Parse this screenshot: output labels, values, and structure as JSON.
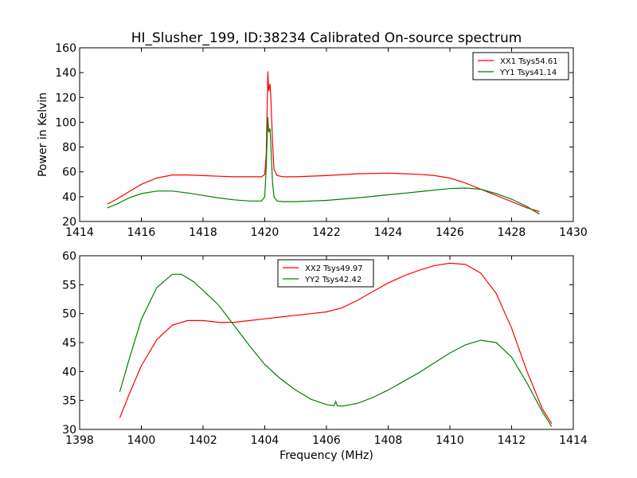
{
  "figure": {
    "title": "HI_Slusher_199, ID:38234 Calibrated On-source spectrum"
  },
  "chart_data": [
    {
      "type": "line",
      "title": "HI_Slusher_199, ID:38234 Calibrated On-source spectrum",
      "xlabel": "",
      "ylabel": "Power in Kelvin",
      "xlim": [
        1414,
        1430
      ],
      "ylim": [
        20,
        160
      ],
      "xticks": [
        1414,
        1416,
        1418,
        1420,
        1422,
        1424,
        1426,
        1428,
        1430
      ],
      "yticks": [
        20,
        40,
        60,
        80,
        100,
        120,
        140,
        160
      ],
      "legend_position": "top-right",
      "grid": false,
      "series": [
        {
          "name": "XX1 Tsys54.61",
          "color": "#ff0000",
          "x": [
            1414.9,
            1415.2,
            1415.6,
            1416.0,
            1416.5,
            1417.0,
            1417.5,
            1418.0,
            1418.5,
            1419.0,
            1419.5,
            1419.9,
            1420.0,
            1420.05,
            1420.1,
            1420.13,
            1420.17,
            1420.2,
            1420.25,
            1420.3,
            1420.4,
            1420.6,
            1421.0,
            1422.0,
            1423.0,
            1424.0,
            1425.0,
            1425.5,
            1426.0,
            1426.5,
            1427.0,
            1427.5,
            1428.0,
            1428.5,
            1428.9
          ],
          "y": [
            34,
            38,
            44,
            50,
            55,
            57.5,
            57.5,
            57,
            56.5,
            56,
            56,
            56,
            58,
            75,
            141,
            125,
            131,
            118,
            85,
            62,
            57,
            56,
            56,
            57,
            58.5,
            59,
            58,
            57,
            55,
            51,
            46,
            41,
            36,
            31,
            28
          ]
        },
        {
          "name": "YY1 Tsys41.14",
          "color": "#008000",
          "x": [
            1414.9,
            1415.2,
            1415.6,
            1416.0,
            1416.5,
            1417.0,
            1417.5,
            1418.0,
            1418.5,
            1419.0,
            1419.5,
            1419.9,
            1420.0,
            1420.05,
            1420.1,
            1420.13,
            1420.17,
            1420.2,
            1420.25,
            1420.3,
            1420.4,
            1420.6,
            1421.0,
            1422.0,
            1423.0,
            1424.0,
            1425.0,
            1426.0,
            1426.5,
            1427.0,
            1427.5,
            1428.0,
            1428.5,
            1428.9
          ],
          "y": [
            31,
            34,
            39,
            42.5,
            44.5,
            44.5,
            43,
            41,
            39,
            37.5,
            36.5,
            36.5,
            40,
            65,
            104,
            92,
            95,
            80,
            52,
            40,
            36.5,
            36,
            36,
            37,
            39,
            41.5,
            44,
            46.5,
            47,
            46,
            42.5,
            38,
            32,
            26
          ]
        }
      ]
    },
    {
      "type": "line",
      "title": "",
      "xlabel": "Frequency (MHz)",
      "ylabel": "",
      "xlim": [
        1398,
        1414
      ],
      "ylim": [
        30,
        60
      ],
      "xticks": [
        1398,
        1400,
        1402,
        1404,
        1406,
        1408,
        1410,
        1412,
        1414
      ],
      "yticks": [
        30,
        35,
        40,
        45,
        50,
        55,
        60
      ],
      "legend_position": "upper-center",
      "grid": false,
      "series": [
        {
          "name": "XX2 Tsys49.97",
          "color": "#ff0000",
          "x": [
            1399.3,
            1399.6,
            1400.0,
            1400.5,
            1401.0,
            1401.5,
            1402.0,
            1402.5,
            1403.0,
            1403.5,
            1404.0,
            1404.5,
            1405.0,
            1405.5,
            1406.0,
            1406.5,
            1407.0,
            1407.5,
            1408.0,
            1408.5,
            1409.0,
            1409.5,
            1410.0,
            1410.5,
            1411.0,
            1411.5,
            1412.0,
            1412.5,
            1413.0,
            1413.3
          ],
          "y": [
            32,
            36,
            41,
            45.5,
            48,
            48.8,
            48.8,
            48.5,
            48.5,
            48.8,
            49.1,
            49.4,
            49.7,
            50,
            50.3,
            51,
            52.3,
            53.8,
            55.3,
            56.5,
            57.5,
            58.3,
            58.7,
            58.5,
            57,
            53.5,
            47.5,
            40,
            33.5,
            31
          ]
        },
        {
          "name": "YY2 Tsys42.42",
          "color": "#008000",
          "x": [
            1399.3,
            1399.6,
            1400.0,
            1400.5,
            1401.0,
            1401.3,
            1401.7,
            1402.0,
            1402.5,
            1403.0,
            1403.5,
            1404.0,
            1404.5,
            1405.0,
            1405.5,
            1406.0,
            1406.25,
            1406.3,
            1406.35,
            1406.5,
            1407.0,
            1407.5,
            1408.0,
            1408.5,
            1409.0,
            1409.5,
            1410.0,
            1410.5,
            1411.0,
            1411.5,
            1412.0,
            1412.5,
            1413.0,
            1413.3
          ],
          "y": [
            36.5,
            42,
            49,
            54.5,
            56.8,
            56.8,
            55.5,
            54,
            51.5,
            48,
            44.5,
            41.2,
            38.8,
            36.8,
            35.2,
            34.3,
            34.1,
            34.8,
            34.1,
            34,
            34.5,
            35.5,
            36.8,
            38.3,
            39.8,
            41.5,
            43.2,
            44.6,
            45.4,
            45,
            42.5,
            38,
            33,
            30.5
          ]
        }
      ]
    }
  ]
}
